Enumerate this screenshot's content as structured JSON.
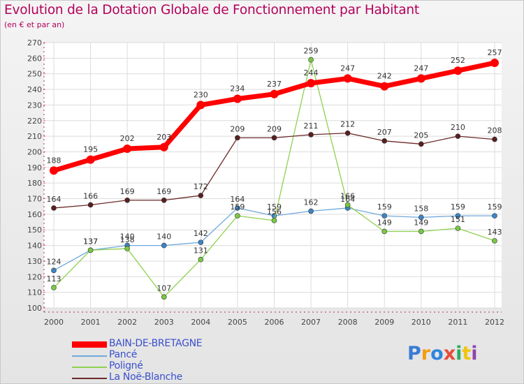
{
  "header": {
    "title": "Evolution de la Dotation Globale de Fonctionnement par Habitant",
    "subtitle": "(en € et par an)"
  },
  "chart_data": {
    "type": "line",
    "title": "Evolution de la Dotation Globale de Fonctionnement par Habitant",
    "subtitle": "(en € et par an)",
    "xlabel": "",
    "ylabel": "",
    "ylim": [
      100,
      270
    ],
    "ytick_step": 10,
    "grid": true,
    "legend_position": "bottom-left",
    "categories": [
      "2000",
      "2001",
      "2002",
      "2003",
      "2004",
      "2005",
      "2006",
      "2007",
      "2008",
      "2009",
      "2010",
      "2011",
      "2012"
    ],
    "series": [
      {
        "name": "BAIN-DE-BRETAGNE",
        "color": "#ff0000",
        "marker_color": "#ff0000",
        "thick": true,
        "values": [
          188,
          195,
          202,
          203,
          230,
          234,
          237,
          244,
          247,
          242,
          247,
          252,
          257
        ]
      },
      {
        "name": "Pancé",
        "color": "#6fa8dc",
        "marker_color": "#3d85c6",
        "values": [
          124,
          137,
          140,
          140,
          142,
          164,
          159,
          162,
          164,
          159,
          158,
          159,
          159
        ]
      },
      {
        "name": "Poligné",
        "color": "#8fd14f",
        "marker_color": "#7ac943",
        "values": [
          113,
          137,
          138,
          107,
          131,
          159,
          156,
          259,
          166,
          149,
          149,
          151,
          143
        ]
      },
      {
        "name": "La Noë-Blanche",
        "color": "#6b2a2a",
        "marker_color": "#5a1f1f",
        "values": [
          164,
          166,
          169,
          169,
          172,
          209,
          209,
          211,
          212,
          207,
          205,
          210,
          208
        ]
      }
    ]
  },
  "logo": {
    "text": "Proxiti",
    "letter_colors": [
      "#3a7bd5",
      "#f39c12",
      "#2e86de",
      "#e74c3c",
      "#27ae60",
      "#f1c40f",
      "#8e44ad"
    ]
  }
}
